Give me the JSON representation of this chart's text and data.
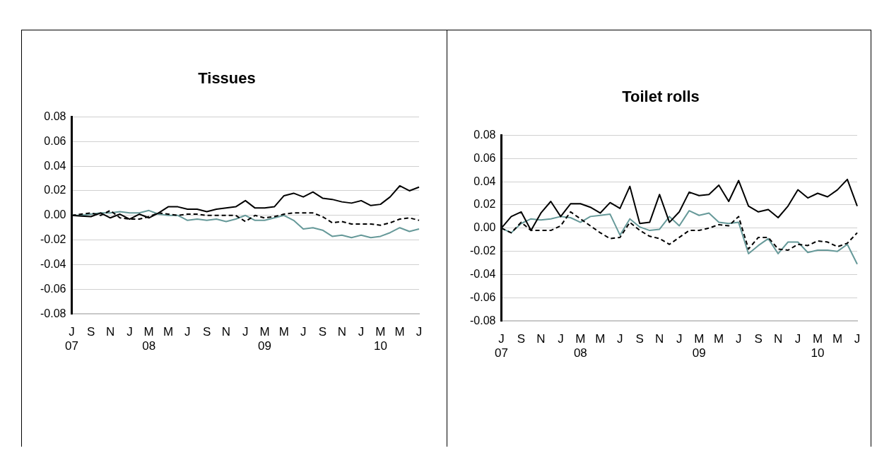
{
  "chart_data": [
    {
      "type": "line",
      "title": "Tissues",
      "categories": [
        "J\n07",
        null,
        "S",
        null,
        "N",
        null,
        "J",
        null,
        "M\n08",
        null,
        "M",
        null,
        "J",
        null,
        "S",
        null,
        "N",
        null,
        "J",
        null,
        "M\n09",
        null,
        "M",
        null,
        "J",
        null,
        "S",
        null,
        "N",
        null,
        "J",
        null,
        "M\n10",
        null,
        "M",
        null,
        "J"
      ],
      "series": [
        {
          "color": "#000000",
          "line_style": "solid",
          "values": [
            0,
            -0.0005,
            -0.001,
            0.002,
            -0.002,
            0.001,
            -0.003,
            0.001,
            -0.002,
            0.002,
            0.007,
            0.007,
            0.005,
            0.005,
            0.003,
            0.005,
            0.006,
            0.007,
            0.012,
            0.006,
            0.006,
            0.007,
            0.016,
            0.018,
            0.015,
            0.019,
            0.014,
            0.013,
            0.011,
            0.01,
            0.012,
            0.008,
            0.009,
            0.015,
            0.024,
            0.02,
            0.023
          ]
        },
        {
          "color": "#000000",
          "line_style": "dashed",
          "values": [
            0,
            0.001,
            0.002,
            0,
            0.004,
            -0.002,
            -0.003,
            -0.003,
            -0.001,
            0.002,
            0.001,
            0,
            0.001,
            0.001,
            0,
            0,
            0,
            0,
            -0.005,
            0,
            -0.002,
            -0.001,
            0.001,
            0.002,
            0.002,
            0.002,
            -0.001,
            -0.006,
            -0.005,
            -0.007,
            -0.007,
            -0.007,
            -0.008,
            -0.006,
            -0.003,
            -0.002,
            -0.004
          ]
        },
        {
          "color": "#669999",
          "line_style": "solid",
          "values": [
            0,
            0,
            0.001,
            0.002,
            0.002,
            0.003,
            0.002,
            0.002,
            0.004,
            0.001,
            0,
            0,
            -0.004,
            -0.003,
            -0.004,
            -0.003,
            -0.005,
            -0.003,
            0,
            -0.004,
            -0.004,
            -0.002,
            0,
            -0.004,
            -0.011,
            -0.01,
            -0.012,
            -0.017,
            -0.016,
            -0.018,
            -0.016,
            -0.018,
            -0.017,
            -0.014,
            -0.01,
            -0.013,
            -0.011
          ]
        }
      ],
      "ylim": [
        -0.08,
        0.08
      ],
      "yticks": [
        -0.08,
        -0.06,
        -0.04,
        -0.02,
        {
          "value": 0,
          "label": "0.00"
        },
        0.02,
        0.04,
        0.06,
        0.08
      ],
      "grid": "y",
      "marker": "none",
      "legend": false
    },
    {
      "type": "line",
      "title": "Toilet rolls",
      "categories": [
        "J\n07",
        null,
        "S",
        null,
        "N",
        null,
        "J",
        null,
        "M\n08",
        null,
        "M",
        null,
        "J",
        null,
        "S",
        null,
        "N",
        null,
        "J",
        null,
        "M\n09",
        null,
        "M",
        null,
        "J",
        null,
        "S",
        null,
        "N",
        null,
        "J",
        null,
        "M\n10",
        null,
        "M",
        null,
        "J"
      ],
      "series": [
        {
          "color": "#000000",
          "line_style": "solid",
          "values": [
            0,
            0.01,
            0.014,
            -0.002,
            0.013,
            0.023,
            0.01,
            0.021,
            0.021,
            0.018,
            0.013,
            0.022,
            0.017,
            0.036,
            0.004,
            0.005,
            0.029,
            0.005,
            0.014,
            0.031,
            0.028,
            0.029,
            0.037,
            0.023,
            0.041,
            0.019,
            0.014,
            0.016,
            0.009,
            0.019,
            0.033,
            0.026,
            0.03,
            0.027,
            0.033,
            0.042,
            0.019
          ]
        },
        {
          "color": "#000000",
          "line_style": "dashed",
          "values": [
            0,
            -0.004,
            0.005,
            -0.002,
            -0.002,
            -0.002,
            0.002,
            0.014,
            0.008,
            0.002,
            -0.004,
            -0.009,
            -0.008,
            0.005,
            -0.002,
            -0.007,
            -0.009,
            -0.014,
            -0.008,
            -0.002,
            -0.002,
            0,
            0.003,
            0.002,
            0.01,
            -0.018,
            -0.008,
            -0.008,
            -0.018,
            -0.019,
            -0.014,
            -0.015,
            -0.011,
            -0.012,
            -0.016,
            -0.013,
            -0.004
          ]
        },
        {
          "color": "#669999",
          "line_style": "solid",
          "values": [
            0,
            -0.004,
            0.004,
            0.008,
            0.007,
            0.008,
            0.01,
            0.009,
            0.005,
            0.01,
            0.011,
            0.012,
            -0.006,
            0.008,
            0.001,
            -0.002,
            -0.001,
            0.01,
            0.002,
            0.015,
            0.011,
            0.013,
            0.005,
            0.004,
            0.005,
            -0.022,
            -0.015,
            -0.009,
            -0.022,
            -0.012,
            -0.012,
            -0.021,
            -0.019,
            -0.019,
            -0.02,
            -0.014,
            -0.031
          ]
        }
      ],
      "ylim": [
        -0.08,
        0.08
      ],
      "yticks": [
        -0.08,
        -0.06,
        -0.04,
        -0.02,
        {
          "value": 0,
          "label": "0.00"
        },
        0.02,
        0.04,
        0.06,
        0.08
      ],
      "grid": "y",
      "marker": "none",
      "legend": false
    }
  ]
}
